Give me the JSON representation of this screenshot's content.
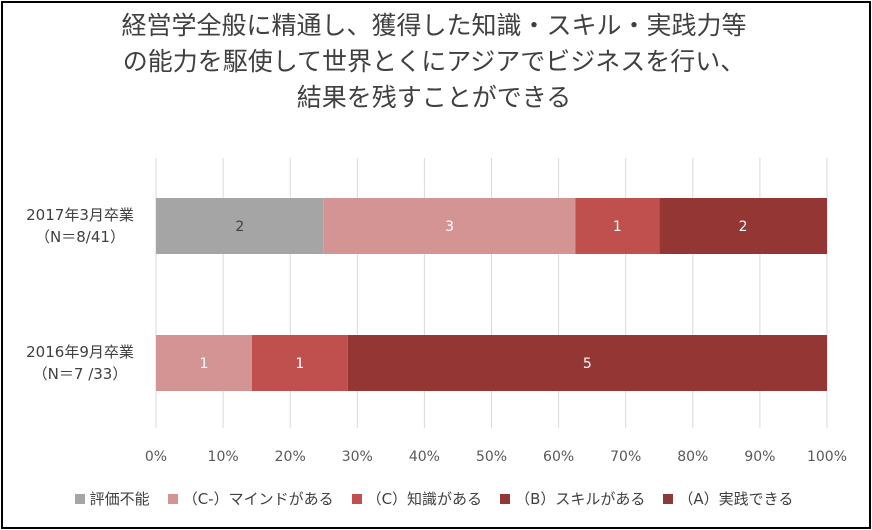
{
  "chart_data": {
    "type": "bar",
    "orientation": "horizontal",
    "stacked": "percent",
    "title_lines": [
      "経営学全般に精通し、獲得した知識・スキル・実践力等",
      "の能力を駆使して世界とくにアジアでビジネスを行い、",
      "結果を残すことができる"
    ],
    "categories": [
      {
        "line1": "2017年3月卒業",
        "line2": "（N＝8/41）"
      },
      {
        "line1": "2016年9月卒業",
        "line2": "（N＝7 /33）"
      }
    ],
    "series": [
      {
        "name": "評価不能",
        "color": "#a5a5a5",
        "values": [
          2,
          0
        ]
      },
      {
        "name": "（C-）マインドがある",
        "color": "#d59494",
        "values": [
          3,
          1
        ]
      },
      {
        "name": "（C）知識がある",
        "color": "#c0504d",
        "values": [
          1,
          1
        ]
      },
      {
        "name": "（B）スキルがある",
        "color": "#943634",
        "values": [
          2,
          5
        ]
      },
      {
        "name": "（A）実践できる",
        "color": "#8b3a3a",
        "values": [
          0,
          0
        ]
      }
    ],
    "x_ticks": [
      "0%",
      "10%",
      "20%",
      "30%",
      "40%",
      "50%",
      "60%",
      "70%",
      "80%",
      "90%",
      "100%"
    ],
    "xlim": [
      0,
      100
    ],
    "grid": true,
    "legend_position": "bottom"
  }
}
